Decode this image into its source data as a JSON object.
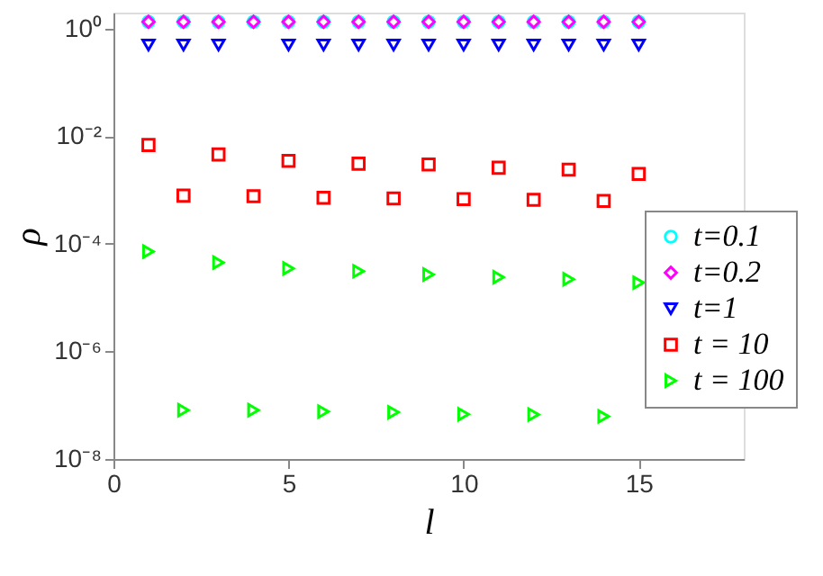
{
  "chart_data": {
    "type": "scatter",
    "xlabel": "l",
    "ylabel": "ρ",
    "log": "y",
    "x": [
      1,
      2,
      3,
      4,
      5,
      6,
      7,
      8,
      9,
      10,
      11,
      12,
      13,
      14,
      15
    ],
    "series": [
      {
        "name": "t=0.1",
        "color": "#00ffff",
        "marker": "circle",
        "values": [
          1.35,
          1.35,
          1.35,
          1.35,
          1.35,
          1.35,
          1.35,
          1.35,
          1.35,
          1.35,
          1.35,
          1.35,
          1.35,
          1.35,
          1.35
        ]
      },
      {
        "name": "t=0.2",
        "color": "#ff00ff",
        "marker": "diamond",
        "values": [
          1.35,
          1.35,
          1.35,
          1.35,
          1.35,
          1.35,
          1.35,
          1.35,
          1.35,
          1.35,
          1.35,
          1.35,
          1.35,
          1.35,
          1.35
        ]
      },
      {
        "name": "t=1",
        "color": "#0000ff",
        "marker": "triangle-down",
        "values": [
          0.5,
          0.5,
          0.5,
          null,
          0.5,
          0.5,
          0.5,
          0.5,
          0.5,
          0.5,
          0.5,
          0.5,
          0.5,
          0.5,
          0.5
        ]
      },
      {
        "name": "t = 10",
        "color": "#ff0000",
        "marker": "square",
        "values": [
          0.0069,
          0.00079,
          0.0046,
          0.00077,
          0.0035,
          0.00072,
          0.0031,
          0.0007,
          0.003,
          0.00068,
          0.0026,
          0.00066,
          0.0024,
          0.00063,
          0.002
        ]
      },
      {
        "name": "t = 100",
        "color": "#00ff00",
        "marker": "triangle-right",
        "values": [
          7.2e-05,
          8.1e-08,
          4.5e-05,
          8.1e-08,
          3.5e-05,
          7.6e-08,
          3.1e-05,
          7.4e-08,
          2.7e-05,
          6.8e-08,
          2.4e-05,
          6.7e-08,
          2.2e-05,
          6.2e-08,
          1.9e-05
        ]
      }
    ],
    "xlim": [
      0,
      18
    ],
    "xticks": [
      0,
      5,
      10,
      15
    ],
    "ylim": [
      1e-08,
      2
    ],
    "yticks": [
      {
        "value": 1e-08,
        "label": "10⁻⁸"
      },
      {
        "value": 1e-06,
        "label": "10⁻⁶"
      },
      {
        "value": 0.0001,
        "label": "10⁻⁴"
      },
      {
        "value": 0.01,
        "label": "10⁻²"
      },
      {
        "value": 1,
        "label": "10⁰"
      }
    ],
    "grid": false,
    "legend": "bottom right"
  }
}
